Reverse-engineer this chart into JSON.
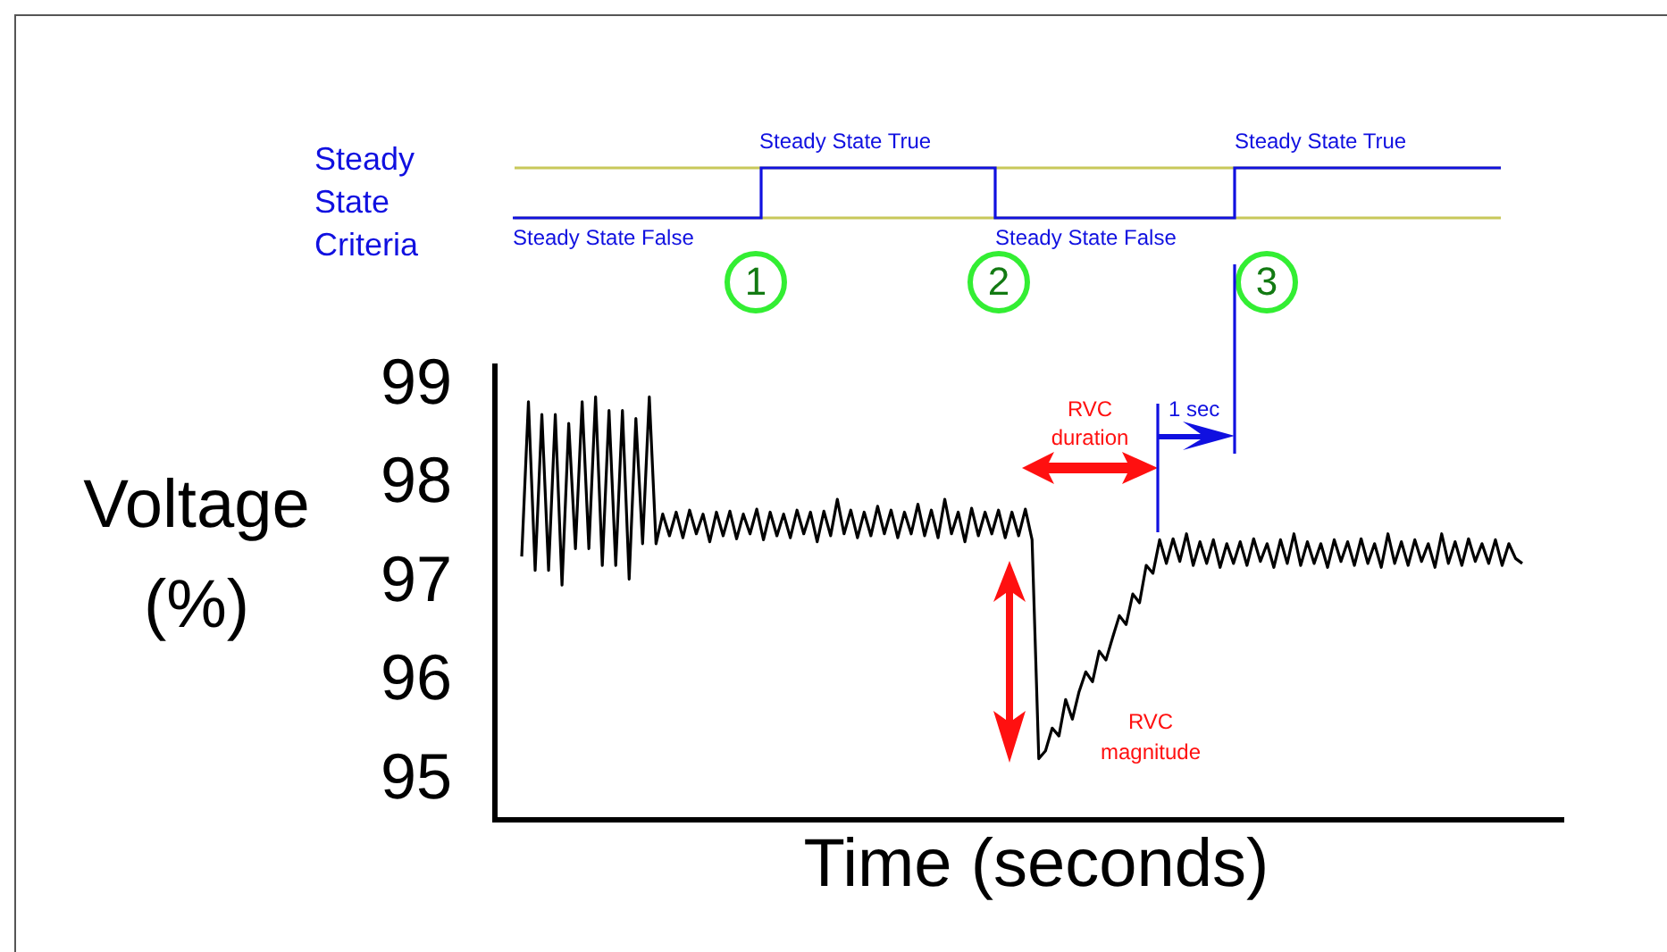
{
  "chart_data": {
    "type": "line",
    "ylabel": "Voltage (%)",
    "xlabel": "Time (seconds)",
    "ylim": [
      94.6,
      99.2
    ],
    "yticks": [
      95,
      96,
      97,
      98,
      99
    ],
    "grid": false,
    "legend": false,
    "marker": "none",
    "annotations": [
      "Steady State Criteria",
      "Steady State True",
      "Steady State True",
      "Steady State False",
      "Steady State False",
      "1",
      "2",
      "3",
      "RVC duration",
      "1 sec",
      "RVC magnitude"
    ],
    "categories": [
      null,
      null,
      null,
      null,
      null,
      null,
      null,
      null,
      null,
      null,
      null,
      null,
      null,
      null,
      null,
      null,
      null,
      null,
      null,
      null,
      null,
      null,
      null,
      null,
      null,
      null,
      null,
      null,
      null,
      null,
      null,
      null,
      null,
      null,
      null,
      null,
      null,
      null,
      null,
      null,
      null,
      null,
      null,
      null,
      null,
      null,
      null,
      null,
      null,
      null,
      null,
      null,
      null,
      null,
      null,
      null,
      null,
      null,
      null,
      null,
      null,
      null,
      null,
      null,
      null,
      null,
      null,
      null,
      null,
      null,
      null,
      null,
      null,
      null,
      null,
      null,
      null,
      null,
      null,
      null,
      null,
      null,
      null,
      null,
      null,
      null,
      null,
      null,
      null,
      null,
      null,
      null,
      null,
      null,
      null,
      null,
      null,
      null,
      null,
      null,
      null,
      null,
      null,
      null,
      null,
      null,
      null,
      null,
      null,
      null,
      null,
      null,
      null,
      null,
      null,
      null,
      null,
      null,
      null,
      null,
      null,
      null,
      null,
      null,
      null,
      null,
      null,
      null,
      null,
      null,
      null,
      null,
      null,
      null,
      null,
      null,
      null,
      null,
      null,
      null,
      null,
      null,
      null,
      null,
      null,
      null,
      null,
      null,
      null,
      null
    ],
    "series": [
      {
        "color": "#000000",
        "values": [
          97.27,
          98.84,
          97.13,
          98.71,
          97.13,
          98.71,
          96.98,
          98.62,
          97.35,
          98.84,
          97.35,
          98.89,
          97.18,
          98.75,
          97.18,
          98.75,
          97.04,
          98.67,
          97.4,
          98.89,
          97.4,
          97.7,
          97.48,
          97.72,
          97.46,
          97.74,
          97.5,
          97.7,
          97.42,
          97.72,
          97.48,
          97.73,
          97.45,
          97.7,
          97.5,
          97.75,
          97.44,
          97.72,
          97.48,
          97.7,
          97.46,
          97.74,
          97.5,
          97.72,
          97.42,
          97.73,
          97.48,
          97.85,
          97.5,
          97.74,
          97.46,
          97.72,
          97.48,
          97.78,
          97.5,
          97.74,
          97.46,
          97.72,
          97.5,
          97.8,
          97.48,
          97.74,
          97.46,
          97.85,
          97.5,
          97.72,
          97.42,
          97.76,
          97.48,
          97.72,
          97.5,
          97.74,
          97.46,
          97.72,
          97.48,
          97.75,
          97.44,
          95.22,
          95.3,
          95.53,
          95.45,
          95.82,
          95.62,
          95.9,
          96.1,
          96.0,
          96.31,
          96.22,
          96.45,
          96.67,
          96.58,
          96.89,
          96.8,
          97.18,
          97.1,
          97.44,
          97.2,
          97.45,
          97.22,
          97.5,
          97.18,
          97.42,
          97.2,
          97.44,
          97.16,
          97.4,
          97.2,
          97.42,
          97.18,
          97.45,
          97.22,
          97.4,
          97.16,
          97.44,
          97.2,
          97.5,
          97.18,
          97.42,
          97.2,
          97.4,
          97.16,
          97.44,
          97.22,
          97.42,
          97.18,
          97.45,
          97.2,
          97.4,
          97.16,
          97.5,
          97.2,
          97.42,
          97.18,
          97.44,
          97.22,
          97.4,
          97.16,
          97.5,
          97.2,
          97.42,
          97.18,
          97.45,
          97.22,
          97.4,
          97.2,
          97.44,
          97.18,
          97.4,
          97.25,
          97.2
        ]
      }
    ]
  }
}
